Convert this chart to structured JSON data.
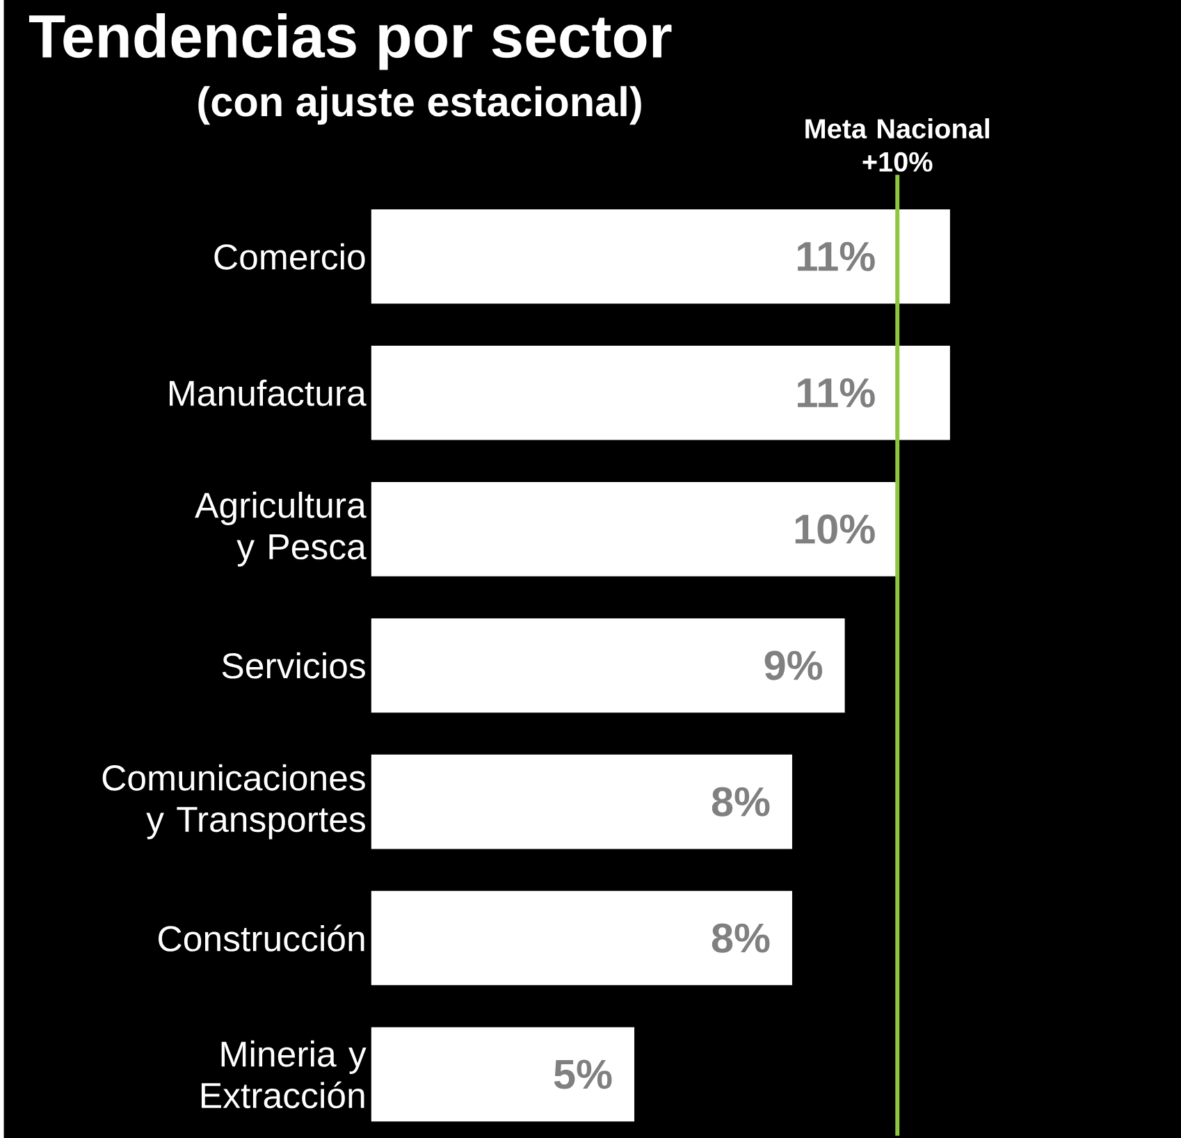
{
  "chart_data": {
    "type": "bar",
    "orientation": "horizontal",
    "title": "Tendencias por sector",
    "subtitle": "(con ajuste estacional)",
    "categories": [
      "Comercio",
      "Manufactura",
      "Agricultura y Pesca",
      "Servicios",
      "Comunicaciones y Transportes",
      "Construcción",
      "Mineria y Extracción"
    ],
    "values": [
      11,
      11,
      10,
      9,
      8,
      8,
      5
    ],
    "value_labels": [
      "11%",
      "11%",
      "10%",
      "9%",
      "8%",
      "8%",
      "5%"
    ],
    "color": "#ffffff",
    "tick_labels": "y",
    "ref_lines": [
      {
        "axis": "x",
        "value": 10,
        "label": "Meta Nacional +10%",
        "color": "#8dc63f"
      }
    ]
  }
}
